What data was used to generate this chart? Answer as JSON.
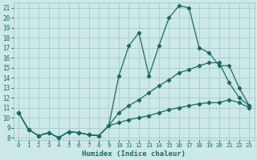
{
  "title": "",
  "xlabel": "Humidex (Indice chaleur)",
  "bg_color": "#cce8e8",
  "grid_color": "#a8cccc",
  "line_color": "#1a6b60",
  "xlim": [
    -0.5,
    23.5
  ],
  "ylim": [
    7.8,
    21.5
  ],
  "yticks": [
    8,
    9,
    10,
    11,
    12,
    13,
    14,
    15,
    16,
    17,
    18,
    19,
    20,
    21
  ],
  "xticks": [
    0,
    1,
    2,
    3,
    4,
    5,
    6,
    7,
    8,
    9,
    10,
    11,
    12,
    13,
    14,
    15,
    16,
    17,
    18,
    19,
    20,
    21,
    22,
    23
  ],
  "line1_x": [
    0,
    1,
    2,
    3,
    4,
    5,
    6,
    7,
    8,
    9,
    10,
    11,
    12,
    13,
    14,
    15,
    16,
    17,
    18,
    19,
    20,
    21,
    22,
    23
  ],
  "line1_y": [
    10.5,
    8.8,
    8.2,
    8.5,
    8.0,
    8.6,
    8.5,
    8.3,
    8.2,
    9.2,
    14.2,
    17.2,
    18.5,
    14.2,
    17.2,
    20.0,
    21.2,
    21.0,
    17.0,
    16.5,
    15.2,
    15.2,
    13.0,
    11.2
  ],
  "line2_x": [
    0,
    1,
    2,
    3,
    4,
    5,
    6,
    7,
    8,
    9,
    10,
    11,
    12,
    13,
    14,
    15,
    16,
    17,
    18,
    19,
    20,
    21,
    22,
    23
  ],
  "line2_y": [
    10.5,
    8.8,
    8.2,
    8.5,
    8.0,
    8.6,
    8.5,
    8.3,
    8.2,
    9.2,
    10.5,
    11.2,
    11.8,
    12.5,
    13.2,
    13.8,
    14.5,
    14.8,
    15.2,
    15.5,
    15.5,
    13.5,
    12.0,
    11.2
  ],
  "line3_x": [
    0,
    1,
    2,
    3,
    4,
    5,
    6,
    7,
    8,
    9,
    10,
    11,
    12,
    13,
    14,
    15,
    16,
    17,
    18,
    19,
    20,
    21,
    22,
    23
  ],
  "line3_y": [
    10.5,
    8.8,
    8.2,
    8.5,
    8.0,
    8.6,
    8.5,
    8.3,
    8.2,
    9.2,
    9.5,
    9.8,
    10.0,
    10.2,
    10.5,
    10.8,
    11.0,
    11.2,
    11.4,
    11.5,
    11.5,
    11.8,
    11.5,
    11.0
  ]
}
